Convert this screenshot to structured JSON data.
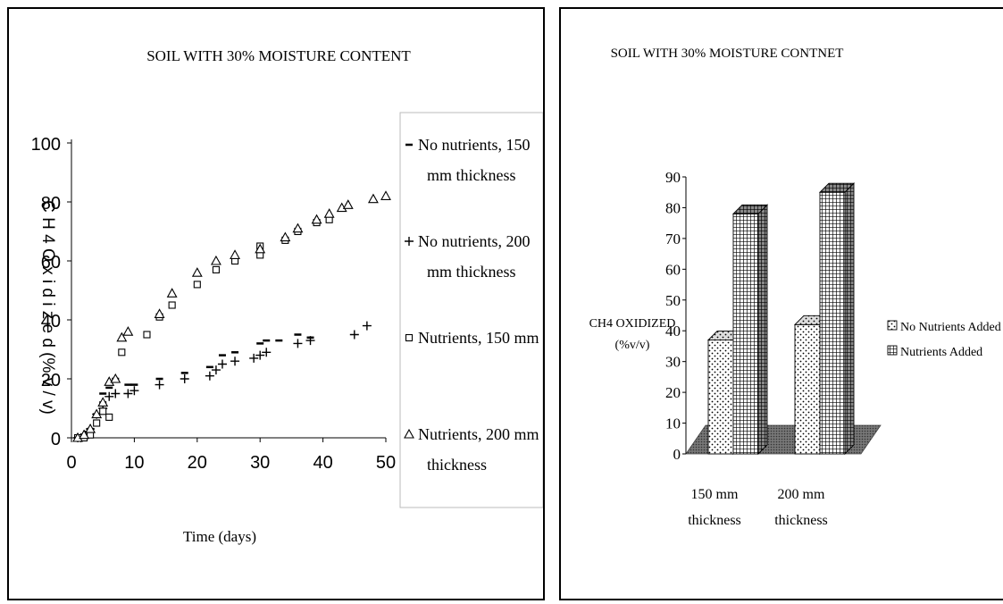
{
  "chart_data": [
    {
      "type": "scatter",
      "title": "SOIL WITH 30% MOISTURE CONTENT",
      "xlabel": "Time (days)",
      "ylabel": "C H 4 O x i d i z e d (% v / v)",
      "xlim": [
        0,
        50
      ],
      "ylim": [
        0,
        100
      ],
      "xticks": [
        "0",
        "10",
        "20",
        "30",
        "40",
        "50"
      ],
      "yticks": [
        "0",
        "20",
        "40",
        "60",
        "80",
        "100"
      ],
      "grid": false,
      "legend_position": "right",
      "series": [
        {
          "name": "No nutrients, 150 mm thickness",
          "marker": "dash",
          "points": [
            [
              1,
              0
            ],
            [
              1.5,
              0
            ],
            [
              2,
              1
            ],
            [
              2.5,
              2
            ],
            [
              3,
              3
            ],
            [
              4,
              8
            ],
            [
              5,
              12
            ],
            [
              5,
              15
            ],
            [
              6,
              17
            ],
            [
              7,
              19
            ],
            [
              7,
              20
            ],
            [
              9,
              18
            ],
            [
              10,
              18
            ],
            [
              14,
              20
            ],
            [
              18,
              22
            ],
            [
              22,
              24
            ],
            [
              24,
              28
            ],
            [
              26,
              29
            ],
            [
              30,
              32
            ],
            [
              31,
              33
            ],
            [
              33,
              33
            ],
            [
              36,
              35
            ],
            [
              38,
              34
            ]
          ]
        },
        {
          "name": "No nutrients, 200 mm thickness",
          "marker": "plus",
          "points": [
            [
              1,
              0
            ],
            [
              1.5,
              0
            ],
            [
              2,
              1
            ],
            [
              3,
              3
            ],
            [
              4,
              8
            ],
            [
              5,
              10
            ],
            [
              6,
              14
            ],
            [
              7,
              15
            ],
            [
              9,
              15
            ],
            [
              10,
              16
            ],
            [
              14,
              18
            ],
            [
              18,
              20
            ],
            [
              22,
              21
            ],
            [
              23,
              23
            ],
            [
              24,
              25
            ],
            [
              26,
              26
            ],
            [
              29,
              27
            ],
            [
              30,
              28
            ],
            [
              31,
              29
            ],
            [
              36,
              32
            ],
            [
              38,
              33
            ],
            [
              45,
              35
            ],
            [
              47,
              38
            ]
          ]
        },
        {
          "name": "Nutrients, 150 mm thickness",
          "marker": "square",
          "points": [
            [
              1,
              0
            ],
            [
              2,
              0
            ],
            [
              3,
              1
            ],
            [
              4,
              5
            ],
            [
              5,
              9
            ],
            [
              6,
              7
            ],
            [
              8,
              29
            ],
            [
              12,
              35
            ],
            [
              14,
              41
            ],
            [
              16,
              45
            ],
            [
              20,
              52
            ],
            [
              23,
              57
            ],
            [
              26,
              60
            ],
            [
              30,
              62
            ],
            [
              30,
              65
            ],
            [
              34,
              67
            ],
            [
              36,
              70
            ],
            [
              39,
              73
            ],
            [
              41,
              74
            ]
          ]
        },
        {
          "name": "Nutrients, 200 mm thickness",
          "marker": "triangle",
          "points": [
            [
              1,
              0
            ],
            [
              2,
              1
            ],
            [
              3,
              3
            ],
            [
              4,
              8
            ],
            [
              5,
              12
            ],
            [
              6,
              19
            ],
            [
              7,
              20
            ],
            [
              8,
              34
            ],
            [
              9,
              36
            ],
            [
              14,
              42
            ],
            [
              16,
              49
            ],
            [
              20,
              56
            ],
            [
              23,
              60
            ],
            [
              26,
              62
            ],
            [
              30,
              64
            ],
            [
              34,
              68
            ],
            [
              36,
              71
            ],
            [
              39,
              74
            ],
            [
              41,
              76
            ],
            [
              43,
              78
            ],
            [
              44,
              79
            ],
            [
              48,
              81
            ],
            [
              50,
              82
            ]
          ]
        }
      ]
    },
    {
      "type": "bar",
      "style": "3d",
      "title": "SOIL WITH 30% MOISTURE CONTNET",
      "ylabel_line1": "CH4 OXIDIZED",
      "ylabel_line2": "(%v/v)",
      "categories": [
        {
          "line1": "150 mm",
          "line2": "thickness"
        },
        {
          "line1": "200 mm",
          "line2": "thickness"
        }
      ],
      "ylim": [
        0,
        90
      ],
      "yticks": [
        "0",
        "10",
        "20",
        "30",
        "40",
        "50",
        "60",
        "70",
        "80",
        "90"
      ],
      "legend_position": "right",
      "series": [
        {
          "name": "No Nutrients Added",
          "pattern": "dots",
          "values": [
            37,
            42
          ]
        },
        {
          "name": "Nutrients Added",
          "pattern": "grid",
          "values": [
            78,
            85
          ]
        }
      ]
    }
  ]
}
